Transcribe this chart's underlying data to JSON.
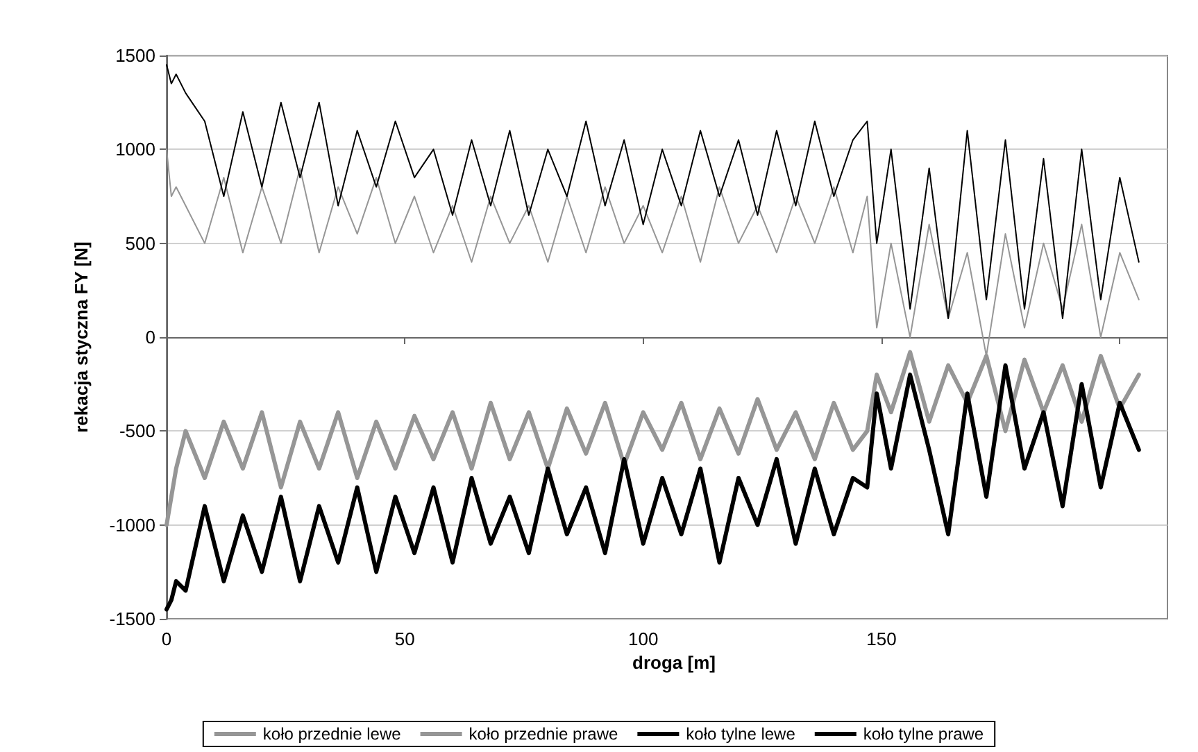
{
  "chart_data": {
    "type": "line",
    "xlabel": "droga [m]",
    "ylabel": "rekacja styczna FY [N]",
    "x": [
      0,
      1,
      2,
      4,
      8,
      12,
      16,
      20,
      24,
      28,
      32,
      36,
      40,
      44,
      48,
      52,
      56,
      60,
      64,
      68,
      72,
      76,
      80,
      84,
      88,
      92,
      96,
      100,
      104,
      108,
      112,
      116,
      120,
      124,
      128,
      132,
      136,
      140,
      144,
      147,
      149,
      152,
      156,
      160,
      164,
      168,
      172,
      176,
      180,
      184,
      188,
      192,
      196,
      200,
      204
    ],
    "xlim": [
      0,
      210
    ],
    "xticks": [
      0,
      50,
      100,
      150,
      {
        "value": 200,
        "label": null
      }
    ],
    "ylim": [
      -1500,
      1500
    ],
    "yticks": [
      -1500,
      -1000,
      -500,
      0,
      500,
      1000,
      1500
    ],
    "grid": "y",
    "legend": "bottom",
    "marker": "none",
    "line_style": "solid",
    "series": [
      {
        "name": "koło przednie lewe",
        "color": "#969696",
        "values": [
          -1000,
          -850,
          -700,
          -500,
          -750,
          -450,
          -700,
          -400,
          -800,
          -450,
          -700,
          -400,
          -750,
          -450,
          -700,
          -420,
          -650,
          -400,
          -700,
          -350,
          -650,
          -400,
          -700,
          -380,
          -620,
          -350,
          -680,
          -400,
          -600,
          -350,
          -650,
          -380,
          -620,
          -330,
          -600,
          -400,
          -650,
          -350,
          -600,
          -500,
          -200,
          -400,
          -80,
          -450,
          -150,
          -350,
          -100,
          -500,
          -120,
          -400,
          -150,
          -450,
          -100,
          -380,
          -200
        ]
      },
      {
        "name": "koło przednie prawe",
        "color": "#969696",
        "values": [
          1000,
          750,
          800,
          700,
          500,
          850,
          450,
          800,
          500,
          900,
          450,
          800,
          550,
          850,
          500,
          750,
          450,
          700,
          400,
          750,
          500,
          700,
          400,
          750,
          450,
          800,
          500,
          700,
          450,
          750,
          400,
          800,
          500,
          700,
          450,
          750,
          500,
          800,
          450,
          750,
          50,
          500,
          0,
          600,
          100,
          450,
          -100,
          550,
          50,
          500,
          150,
          600,
          0,
          450,
          200
        ]
      },
      {
        "name": "koło tylne lewe",
        "color": "#000000",
        "values": [
          -1450,
          -1400,
          -1300,
          -1350,
          -900,
          -1300,
          -950,
          -1250,
          -850,
          -1300,
          -900,
          -1200,
          -800,
          -1250,
          -850,
          -1150,
          -800,
          -1200,
          -750,
          -1100,
          -850,
          -1150,
          -700,
          -1050,
          -800,
          -1150,
          -650,
          -1100,
          -750,
          -1050,
          -700,
          -1200,
          -750,
          -1000,
          -650,
          -1100,
          -700,
          -1050,
          -750,
          -800,
          -300,
          -700,
          -200,
          -600,
          -1050,
          -300,
          -850,
          -150,
          -700,
          -400,
          -900,
          -250,
          -800,
          -350,
          -600
        ]
      },
      {
        "name": "koło tylne prawe",
        "color": "#000000",
        "values": [
          1450,
          1350,
          1400,
          1300,
          1150,
          750,
          1200,
          800,
          1250,
          850,
          1250,
          700,
          1100,
          800,
          1150,
          850,
          1000,
          650,
          1050,
          700,
          1100,
          650,
          1000,
          750,
          1150,
          700,
          1050,
          600,
          1000,
          700,
          1100,
          750,
          1050,
          650,
          1100,
          700,
          1150,
          750,
          1050,
          1150,
          500,
          1000,
          150,
          900,
          100,
          1100,
          200,
          1050,
          150,
          950,
          100,
          1000,
          200,
          850,
          400
        ]
      }
    ]
  }
}
